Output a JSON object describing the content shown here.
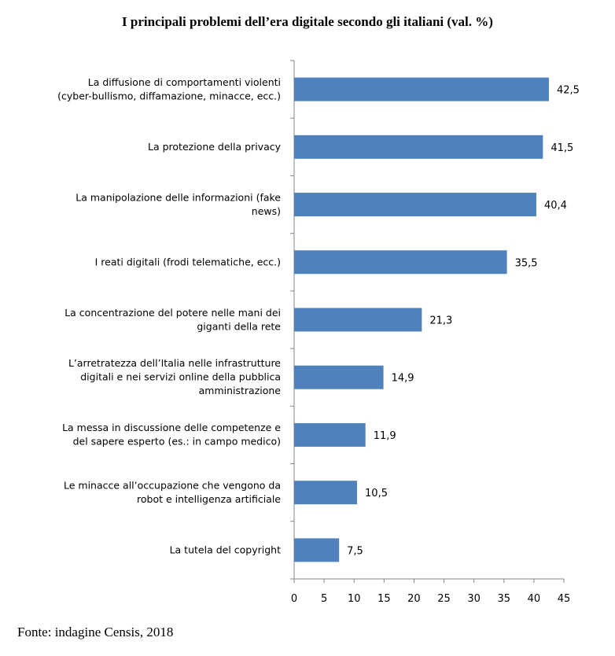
{
  "chart_data": {
    "type": "bar",
    "orientation": "horizontal",
    "title": "I principali problemi dell’era digitale secondo gli italiani (val. %)",
    "categories": [
      [
        "La diffusione di comportamenti violenti",
        "(cyber-bullismo, diffamazione, minacce, ecc.)"
      ],
      [
        "La protezione della privacy"
      ],
      [
        "La manipolazione delle informazioni (fake",
        "news)"
      ],
      [
        "I reati digitali (frodi telematiche, ecc.)"
      ],
      [
        "La concentrazione del potere nelle mani dei",
        "giganti della rete"
      ],
      [
        "L’arretratezza dell’Italia nelle infrastrutture",
        "digitali e nei servizi online della pubblica",
        "amministrazione"
      ],
      [
        "La messa in discussione delle competenze e",
        "del sapere esperto (es.: in campo medico)"
      ],
      [
        "Le minacce all’occupazione che vengono da",
        "robot e intelligenza artificiale"
      ],
      [
        "La tutela del copyright"
      ]
    ],
    "values": [
      42.5,
      41.5,
      40.4,
      35.5,
      21.3,
      14.9,
      11.9,
      10.5,
      7.5
    ],
    "value_labels": [
      "42,5",
      "41,5",
      "40,4",
      "35,5",
      "21,3",
      "14,9",
      "11,9",
      "10,5",
      "7,5"
    ],
    "xticks": [
      0,
      5,
      10,
      15,
      20,
      25,
      30,
      35,
      40,
      45
    ],
    "xlim": [
      0,
      45
    ],
    "grid": false,
    "bar_color": "#4F81BD",
    "source": "Fonte: indagine Censis, 2018"
  }
}
